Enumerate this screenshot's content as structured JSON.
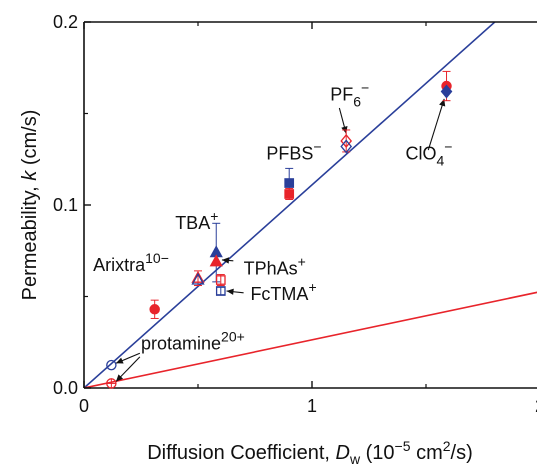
{
  "chart_data": {
    "type": "scatter",
    "title": "",
    "xlabel": {
      "prefix": "Diffusion Coefficient, ",
      "var": "D",
      "sub": "w",
      "unit_open": " (10",
      "unit_exp": "−5",
      "unit_mid": " cm",
      "unit_exp2": "2",
      "unit_close": "/s)"
    },
    "ylabel": {
      "prefix": "Permeability, ",
      "var": "k",
      "suffix": " (cm/s)"
    },
    "xlim": [
      0,
      2
    ],
    "ylim": [
      0,
      0.2
    ],
    "x_ticks": [
      0,
      1,
      2
    ],
    "x_tick_labels": [
      "0",
      "1",
      "2"
    ],
    "y_ticks": [
      0.0,
      0.1,
      0.2
    ],
    "y_tick_labels": [
      "0.0",
      "0.1",
      "0.2"
    ],
    "grid": false,
    "colors": {
      "blue": "#2a3f9a",
      "red": "#e8242b",
      "axis": "#111111"
    },
    "lines": [
      {
        "color": "blue",
        "slope": 0.111
      },
      {
        "color": "red",
        "slope": 0.0263
      }
    ],
    "points": [
      {
        "x": 1.59,
        "y": 0.165,
        "err": 0.008,
        "shape": "circle",
        "fill": "filled",
        "color": "red"
      },
      {
        "x": 1.59,
        "y": 0.162,
        "err": 0.0,
        "shape": "diamond",
        "fill": "filled",
        "color": "blue"
      },
      {
        "x": 1.15,
        "y": 0.135,
        "err": 0.006,
        "shape": "diamond",
        "fill": "open",
        "color": "red"
      },
      {
        "x": 1.15,
        "y": 0.132,
        "err": 0.0,
        "shape": "diamond",
        "fill": "open",
        "color": "blue"
      },
      {
        "x": 0.9,
        "y": 0.112,
        "err": 0.008,
        "shape": "square",
        "fill": "filled",
        "color": "blue"
      },
      {
        "x": 0.9,
        "y": 0.106,
        "err": 0.003,
        "shape": "square",
        "fill": "filled",
        "color": "red"
      },
      {
        "x": 0.58,
        "y": 0.074,
        "err": 0.016,
        "shape": "triangle",
        "fill": "filled",
        "color": "blue"
      },
      {
        "x": 0.58,
        "y": 0.069,
        "err": 0.0,
        "shape": "triangle",
        "fill": "filled",
        "color": "red"
      },
      {
        "x": 0.5,
        "y": 0.06,
        "err": 0.004,
        "shape": "triangle",
        "fill": "open",
        "color": "red"
      },
      {
        "x": 0.5,
        "y": 0.059,
        "err": 0.0,
        "shape": "triangle",
        "fill": "open",
        "color": "blue"
      },
      {
        "x": 0.6,
        "y": 0.059,
        "err": 0.003,
        "shape": "square",
        "fill": "open",
        "color": "red"
      },
      {
        "x": 0.6,
        "y": 0.053,
        "err": 0.002,
        "shape": "square",
        "fill": "open",
        "color": "blue"
      },
      {
        "x": 0.31,
        "y": 0.043,
        "err": 0.005,
        "shape": "circle",
        "fill": "filled",
        "color": "red"
      },
      {
        "x": 0.12,
        "y": 0.0125,
        "err": 0.0,
        "shape": "circle",
        "fill": "open",
        "color": "blue"
      },
      {
        "x": 0.12,
        "y": 0.0025,
        "err": 0.0,
        "shape": "crosscircle",
        "fill": "open",
        "color": "red"
      }
    ],
    "annotations": [
      {
        "base": "PF",
        "sub": "6",
        "sup": "−",
        "x": 1.08,
        "y": 0.157
      },
      {
        "base": "PFBS",
        "sub": "",
        "sup": "−",
        "x": 0.8,
        "y": 0.125
      },
      {
        "base": "ClO",
        "sub": "4",
        "sup": "−",
        "x": 1.41,
        "y": 0.125
      },
      {
        "base": "TBA",
        "sub": "",
        "sup": "+",
        "x": 0.4,
        "y": 0.087
      },
      {
        "base": "Arixtra",
        "sub": "",
        "sup": "10−",
        "x": 0.04,
        "y": 0.064
      },
      {
        "base": "TPhAs",
        "sub": "",
        "sup": "+",
        "x": 0.7,
        "y": 0.062
      },
      {
        "base": "FcTMA",
        "sub": "",
        "sup": "+",
        "x": 0.73,
        "y": 0.048
      },
      {
        "base": "protamine",
        "sub": "",
        "sup": "20+",
        "x": 0.25,
        "y": 0.021
      }
    ],
    "arrows": [
      {
        "from": [
          1.12,
          0.153
        ],
        "to": [
          1.15,
          0.139
        ]
      },
      {
        "from": [
          1.51,
          0.13
        ],
        "to": [
          1.58,
          0.158
        ]
      },
      {
        "from": [
          0.655,
          0.0695
        ],
        "to": [
          0.605,
          0.07
        ]
      },
      {
        "from": [
          0.7,
          0.052
        ],
        "to": [
          0.625,
          0.053
        ]
      },
      {
        "from": [
          0.245,
          0.019
        ],
        "to": [
          0.14,
          0.0135
        ]
      },
      {
        "from": [
          0.245,
          0.017
        ],
        "to": [
          0.14,
          0.0035
        ]
      }
    ]
  }
}
